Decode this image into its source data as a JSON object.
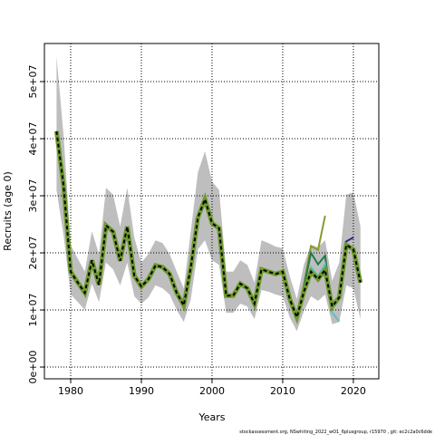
{
  "chart_data": {
    "type": "line",
    "xlabel": "Years",
    "ylabel": "Recruits (age 0)",
    "footer": "stockassessment.org, NSwhiting_2022_wO1_6plusgroup, r15970 , git: ec2c2a0c6dde",
    "xlim": [
      1976.28,
      2023.6
    ],
    "xticks": [
      1980,
      1990,
      2000,
      2010,
      2020
    ],
    "ylim": [
      -2060000,
      56670000
    ],
    "yticks": [
      {
        "value": 0,
        "label": "0e+00"
      },
      {
        "value": 10000000,
        "label": "1e+07"
      },
      {
        "value": 20000000,
        "label": "2e+07"
      },
      {
        "value": 30000000,
        "label": "3e+07"
      },
      {
        "value": 40000000,
        "label": "4e+07"
      },
      {
        "value": 50000000,
        "label": "5e+07"
      }
    ],
    "grid": true,
    "band": {
      "color": "#bebebe",
      "x": [
        1978,
        1979,
        1980,
        1981,
        1982,
        1983,
        1984,
        1985,
        1986,
        1987,
        1988,
        1989,
        1990,
        1991,
        1992,
        1993,
        1994,
        1995,
        1996,
        1997,
        1998,
        1999,
        2000,
        2001,
        2002,
        2003,
        2004,
        2005,
        2006,
        2007,
        2008,
        2009,
        2010,
        2011,
        2012,
        2013,
        2014,
        2015,
        2016,
        2017,
        2018,
        2019,
        2020,
        2021
      ],
      "upper": [
        54400000.0,
        40500000.0,
        21400000.0,
        19000000.0,
        16700000.0,
        23800000.0,
        19800000.0,
        31400000.0,
        30200000.0,
        24600000.0,
        31400000.0,
        22700000.0,
        18300000.0,
        19800000.0,
        22200000.0,
        21700000.0,
        19800000.0,
        16700000.0,
        13800000.0,
        23800000.0,
        34100000.0,
        37800000.0,
        32500000.0,
        31000000.0,
        16700000.0,
        16700000.0,
        18700000.0,
        17900000.0,
        14800000.0,
        22200000.0,
        21700000.0,
        21100000.0,
        20800000.0,
        15900000.0,
        11900000.0,
        17900000.0,
        21400000.0,
        21000000.0,
        22200000.0,
        15100000.0,
        18300000.0,
        30200000.0,
        30600000.0,
        24600000.0
      ],
      "lower": [
        31000000.0,
        23000000.0,
        12700000.0,
        11400000.0,
        10000000.0,
        14600000.0,
        11400000.0,
        18300000.0,
        17100000.0,
        14300000.0,
        18300000.0,
        12400000.0,
        11100000.0,
        12200000.0,
        14300000.0,
        13800000.0,
        12700000.0,
        10000000.0,
        7900000.0,
        11900000.0,
        20600000.0,
        22200000.0,
        18700000.0,
        17900000.0,
        9500000.0,
        9500000.0,
        11100000.0,
        10600000.0,
        8400000.0,
        13500000.0,
        13200000.0,
        12700000.0,
        12400000.0,
        8700000.0,
        6300000.0,
        9800000.0,
        12400000.0,
        11600000.0,
        12700000.0,
        7500000.0,
        7900000.0,
        14300000.0,
        13800000.0,
        8400000.0
      ]
    },
    "series": [
      {
        "color": "#8a9a30",
        "x": [
          2010,
          2011,
          2012,
          2013,
          2014,
          2015,
          2016
        ],
        "values": [
          17200000.0,
          12500000.0,
          9300000.0,
          14500000.0,
          21200000.0,
          20500000.0,
          26500000.0
        ]
      },
      {
        "color": "#1e7a4a",
        "x": [
          2010,
          2011,
          2012,
          2013,
          2014,
          2015,
          2016,
          2017
        ],
        "values": [
          17000000.0,
          12300000.0,
          9100000.0,
          14000000.0,
          20000000.0,
          18000000.0,
          19500000.0,
          10000000.0
        ]
      },
      {
        "color": "#5fc0c0",
        "x": [
          2010,
          2011,
          2012,
          2013,
          2014,
          2015,
          2016,
          2017,
          2018
        ],
        "values": [
          16800000.0,
          12100000.0,
          8900000.0,
          13500000.0,
          17500000.0,
          16000000.0,
          18000000.0,
          9500000.0,
          8000000.0
        ]
      },
      {
        "color": "#2a2a7a",
        "x": [
          2010,
          2011,
          2012,
          2013,
          2014,
          2015,
          2016,
          2017,
          2018,
          2019,
          2020
        ],
        "values": [
          16700000.0,
          11900000.0,
          8700000.0,
          13200000.0,
          16700000.0,
          15400000.0,
          17000000.0,
          11000000.0,
          12500000.0,
          22000000.0,
          22700000.0
        ]
      },
      {
        "color": "#000000",
        "dashed": true,
        "x": [
          1978,
          1979,
          1980,
          1981,
          1982,
          1983,
          1984,
          1985,
          1986,
          1987,
          1988,
          1989,
          1990,
          1991,
          1992,
          1993,
          1994,
          1995,
          1996,
          1997,
          1998,
          1999,
          2000,
          2001,
          2002,
          2003,
          2004,
          2005,
          2006,
          2007,
          2008,
          2009,
          2010,
          2011,
          2012,
          2013,
          2014,
          2015,
          2016,
          2017,
          2018,
          2019,
          2020,
          2021
        ],
        "values": [
          41300000.0,
          31700000.0,
          16700000.0,
          14800000.0,
          13000000.0,
          18700000.0,
          14400000.0,
          24800000.0,
          23700000.0,
          18600000.0,
          24600000.0,
          16000000.0,
          14100000.0,
          15400000.0,
          17800000.0,
          17500000.0,
          16300000.0,
          13000000.0,
          10800000.0,
          17500000.0,
          26200000.0,
          29400000.0,
          25200000.0,
          24300000.0,
          12500000.0,
          12500000.0,
          14600000.0,
          13800000.0,
          11100000.0,
          17100000.0,
          16700000.0,
          16300000.0,
          16700000.0,
          11900000.0,
          8700000.0,
          13200000.0,
          16700000.0,
          15400000.0,
          17000000.0,
          10600000.0,
          12200000.0,
          21400000.0,
          20600000.0,
          14800000.0
        ]
      }
    ]
  }
}
